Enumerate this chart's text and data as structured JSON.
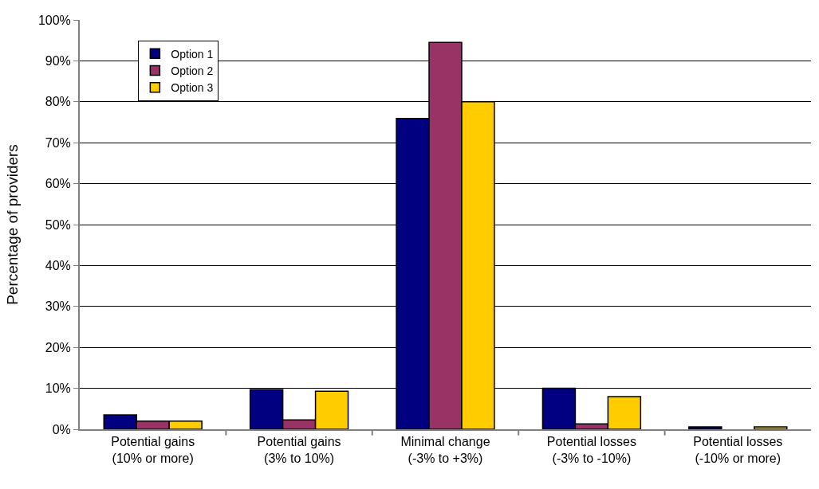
{
  "chart_data": {
    "type": "bar",
    "ylabel": "Percentage of providers",
    "categories": [
      "Potential gains\n(10% or more)",
      "Potential gains\n(3% to 10%)",
      "Minimal change\n(-3% to +3%)",
      "Potential losses\n(-3% to -10%)",
      "Potential losses\n(-10% or more)"
    ],
    "series": [
      {
        "name": "Option 1",
        "color": "#000080",
        "values": [
          3.5,
          9.7,
          75.9,
          10.0,
          0.6
        ]
      },
      {
        "name": "Option 2",
        "color": "#993366",
        "values": [
          2.0,
          2.3,
          94.5,
          1.3,
          null
        ]
      },
      {
        "name": "Option 3",
        "color": "#ffcc00",
        "values": [
          2.0,
          9.3,
          80.0,
          8.0,
          0.6
        ]
      }
    ],
    "ylim": [
      0,
      100
    ],
    "yticks": [
      {
        "value": 0,
        "label": "0%"
      },
      {
        "value": 10,
        "label": "10%"
      },
      {
        "value": 20,
        "label": "20%"
      },
      {
        "value": 30,
        "label": "30%"
      },
      {
        "value": 40,
        "label": "40%"
      },
      {
        "value": 50,
        "label": "50%"
      },
      {
        "value": 60,
        "label": "60%"
      },
      {
        "value": 70,
        "label": "70%"
      },
      {
        "value": 80,
        "label": "80%"
      },
      {
        "value": 90,
        "label": "90%"
      },
      {
        "value": 100,
        "label": "100%"
      }
    ],
    "grid": "y",
    "legend": "top left"
  }
}
